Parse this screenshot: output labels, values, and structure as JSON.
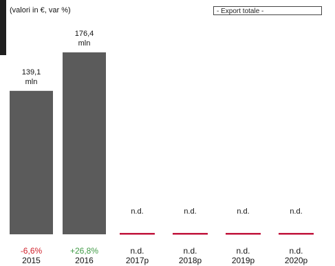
{
  "header": {
    "units_note": "(valori in €, var %)",
    "filter_label": "- Export totale -"
  },
  "colors": {
    "bar": "#5b5b5b",
    "nd_marker": "#c0143c",
    "negative": "#d0202a",
    "positive": "#3f9a45",
    "neutral": "#111111"
  },
  "chart_data": {
    "type": "bar",
    "title": "",
    "xlabel": "",
    "ylabel": "",
    "categories": [
      "2015",
      "2016",
      "2017p",
      "2018p",
      "2019p",
      "2020p"
    ],
    "values": [
      139.1,
      176.4,
      null,
      null,
      null,
      null
    ],
    "value_labels": [
      [
        "139,1",
        "mln"
      ],
      [
        "176,4",
        "mln"
      ],
      [
        "n.d."
      ],
      [
        "n.d."
      ],
      [
        "n.d."
      ],
      [
        "n.d."
      ]
    ],
    "variations": [
      "-6,6%",
      "+26,8%",
      "n.d.",
      "n.d.",
      "n.d.",
      "n.d."
    ],
    "variation_sign": [
      "negative",
      "positive",
      "neutral",
      "neutral",
      "neutral",
      "neutral"
    ],
    "ylim": [
      0,
      176.4
    ],
    "grid": false,
    "legend": false
  }
}
